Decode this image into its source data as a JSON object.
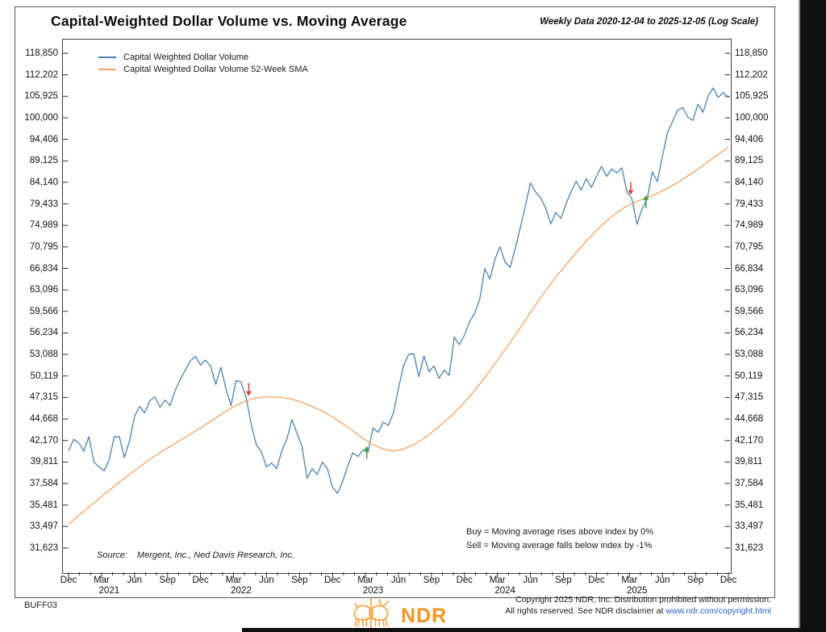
{
  "page": {
    "chart_code": "BUFF03",
    "copyright_line1": "Copyright 2025 NDR, Inc. Distribution prohibited without permission.",
    "copyright_line2_prefix": "All rights reserved. See NDR disclaimer at ",
    "copyright_link": "www.ndr.com/copyright.html",
    "logo_text": "NDR"
  },
  "chart_data": {
    "type": "line",
    "title": "Capital-Weighted Dollar Volume vs. Moving Average",
    "subtitle": "Weekly Data 2020-12-04 to 2025-12-05 (Log Scale)",
    "scale": "log",
    "x_unit": "weeks since 2020-12-04",
    "x_range": [
      0,
      260
    ],
    "y_axis": {
      "top_value": 118850,
      "bottom_value": 31623,
      "tick_labels": [
        "118,850",
        "112,202",
        "105,925",
        "100,000",
        "94,406",
        "89,125",
        "84,140",
        "79,433",
        "74,989",
        "70,795",
        "66,834",
        "63,096",
        "59,566",
        "56,234",
        "53,088",
        "50,119",
        "47,315",
        "44,668",
        "42,170",
        "39,811",
        "37,584",
        "35,481",
        "33,497",
        "31,623"
      ]
    },
    "x_axis": {
      "quarter_labels": [
        {
          "label": "Dec",
          "week": 0
        },
        {
          "label": "Mar",
          "week": 13
        },
        {
          "label": "Jun",
          "week": 26
        },
        {
          "label": "Sep",
          "week": 39
        },
        {
          "label": "Dec",
          "week": 52
        },
        {
          "label": "Mar",
          "week": 65
        },
        {
          "label": "Jun",
          "week": 78
        },
        {
          "label": "Sep",
          "week": 91
        },
        {
          "label": "Dec",
          "week": 104
        },
        {
          "label": "Mar",
          "week": 117
        },
        {
          "label": "Jun",
          "week": 130
        },
        {
          "label": "Sep",
          "week": 143
        },
        {
          "label": "Dec",
          "week": 156
        },
        {
          "label": "Mar",
          "week": 169
        },
        {
          "label": "Jun",
          "week": 182
        },
        {
          "label": "Sep",
          "week": 195
        },
        {
          "label": "Dec",
          "week": 208
        },
        {
          "label": "Mar",
          "week": 221
        },
        {
          "label": "Jun",
          "week": 234
        },
        {
          "label": "Sep",
          "week": 247
        },
        {
          "label": "Dec",
          "week": 260
        }
      ],
      "year_labels": [
        {
          "label": "2021",
          "week": 16
        },
        {
          "label": "2022",
          "week": 68
        },
        {
          "label": "2023",
          "week": 120
        },
        {
          "label": "2024",
          "week": 172
        },
        {
          "label": "2025",
          "week": 224
        }
      ]
    },
    "series": [
      {
        "name": "Capital Weighted Dollar Volume",
        "color": "#4884B0",
        "points": [
          [
            0,
            41000
          ],
          [
            2,
            42300
          ],
          [
            4,
            41900
          ],
          [
            6,
            41000
          ],
          [
            8,
            42600
          ],
          [
            10,
            39800
          ],
          [
            12,
            39300
          ],
          [
            14,
            38900
          ],
          [
            16,
            40000
          ],
          [
            18,
            42600
          ],
          [
            20,
            42600
          ],
          [
            22,
            40300
          ],
          [
            24,
            42100
          ],
          [
            26,
            45000
          ],
          [
            28,
            46200
          ],
          [
            30,
            45400
          ],
          [
            32,
            46900
          ],
          [
            34,
            47400
          ],
          [
            36,
            46100
          ],
          [
            38,
            47000
          ],
          [
            40,
            46300
          ],
          [
            42,
            48200
          ],
          [
            44,
            49600
          ],
          [
            46,
            50900
          ],
          [
            48,
            52200
          ],
          [
            50,
            52800
          ],
          [
            52,
            51600
          ],
          [
            54,
            52300
          ],
          [
            56,
            51400
          ],
          [
            58,
            49000
          ],
          [
            60,
            51300
          ],
          [
            62,
            48400
          ],
          [
            64,
            46300
          ],
          [
            66,
            49500
          ],
          [
            68,
            49300
          ],
          [
            70,
            47300
          ],
          [
            72,
            44000
          ],
          [
            74,
            41700
          ],
          [
            76,
            40900
          ],
          [
            78,
            39300
          ],
          [
            80,
            39700
          ],
          [
            82,
            39100
          ],
          [
            84,
            41000
          ],
          [
            86,
            42300
          ],
          [
            88,
            44600
          ],
          [
            90,
            43000
          ],
          [
            92,
            41500
          ],
          [
            94,
            38100
          ],
          [
            96,
            39100
          ],
          [
            98,
            38500
          ],
          [
            100,
            39800
          ],
          [
            102,
            39100
          ],
          [
            104,
            37200
          ],
          [
            106,
            36600
          ],
          [
            108,
            37800
          ],
          [
            110,
            39400
          ],
          [
            112,
            40800
          ],
          [
            114,
            40400
          ],
          [
            116,
            41100
          ],
          [
            118,
            40900
          ],
          [
            120,
            43600
          ],
          [
            122,
            43100
          ],
          [
            124,
            44300
          ],
          [
            126,
            43900
          ],
          [
            128,
            45400
          ],
          [
            130,
            48500
          ],
          [
            132,
            51500
          ],
          [
            134,
            53100
          ],
          [
            136,
            53200
          ],
          [
            138,
            50000
          ],
          [
            140,
            52900
          ],
          [
            142,
            50700
          ],
          [
            144,
            51500
          ],
          [
            146,
            49800
          ],
          [
            148,
            50900
          ],
          [
            150,
            50200
          ],
          [
            152,
            55600
          ],
          [
            154,
            54500
          ],
          [
            156,
            55900
          ],
          [
            158,
            57900
          ],
          [
            160,
            59300
          ],
          [
            162,
            61500
          ],
          [
            164,
            66800
          ],
          [
            166,
            65000
          ],
          [
            168,
            68500
          ],
          [
            170,
            70800
          ],
          [
            172,
            68000
          ],
          [
            174,
            67000
          ],
          [
            176,
            70500
          ],
          [
            178,
            74500
          ],
          [
            180,
            79000
          ],
          [
            182,
            84000
          ],
          [
            184,
            82000
          ],
          [
            186,
            80700
          ],
          [
            188,
            78500
          ],
          [
            190,
            75300
          ],
          [
            192,
            77600
          ],
          [
            194,
            76400
          ],
          [
            196,
            79400
          ],
          [
            198,
            82000
          ],
          [
            200,
            84400
          ],
          [
            202,
            82400
          ],
          [
            204,
            85000
          ],
          [
            206,
            83000
          ],
          [
            208,
            85500
          ],
          [
            210,
            87800
          ],
          [
            212,
            85500
          ],
          [
            214,
            87200
          ],
          [
            216,
            86300
          ],
          [
            218,
            87500
          ],
          [
            220,
            82000
          ],
          [
            222,
            80500
          ],
          [
            224,
            75200
          ],
          [
            226,
            78400
          ],
          [
            228,
            80500
          ],
          [
            230,
            86500
          ],
          [
            232,
            84300
          ],
          [
            234,
            90200
          ],
          [
            236,
            96200
          ],
          [
            238,
            99000
          ],
          [
            240,
            102100
          ],
          [
            242,
            102800
          ],
          [
            244,
            100200
          ],
          [
            246,
            99300
          ],
          [
            248,
            103700
          ],
          [
            250,
            101500
          ],
          [
            252,
            106000
          ],
          [
            254,
            108300
          ],
          [
            256,
            105600
          ],
          [
            258,
            107000
          ],
          [
            260,
            105500
          ]
        ]
      },
      {
        "name": "Capital Weighted Dollar Volume 52-Week SMA",
        "color": "#F7A15C",
        "points": [
          [
            0,
            33700
          ],
          [
            4,
            34500
          ],
          [
            8,
            35300
          ],
          [
            12,
            36100
          ],
          [
            16,
            36900
          ],
          [
            20,
            37700
          ],
          [
            24,
            38500
          ],
          [
            28,
            39300
          ],
          [
            32,
            40100
          ],
          [
            36,
            40800
          ],
          [
            40,
            41500
          ],
          [
            44,
            42200
          ],
          [
            48,
            42900
          ],
          [
            52,
            43600
          ],
          [
            56,
            44400
          ],
          [
            60,
            45200
          ],
          [
            64,
            46000
          ],
          [
            68,
            46600
          ],
          [
            72,
            47100
          ],
          [
            76,
            47350
          ],
          [
            80,
            47400
          ],
          [
            84,
            47300
          ],
          [
            88,
            47100
          ],
          [
            92,
            46700
          ],
          [
            96,
            46200
          ],
          [
            100,
            45600
          ],
          [
            104,
            44900
          ],
          [
            108,
            44100
          ],
          [
            112,
            43300
          ],
          [
            116,
            42400
          ],
          [
            120,
            41700
          ],
          [
            124,
            41200
          ],
          [
            128,
            41000
          ],
          [
            132,
            41200
          ],
          [
            136,
            41700
          ],
          [
            140,
            42400
          ],
          [
            144,
            43300
          ],
          [
            148,
            44300
          ],
          [
            152,
            45400
          ],
          [
            156,
            46700
          ],
          [
            160,
            48200
          ],
          [
            164,
            49900
          ],
          [
            168,
            51800
          ],
          [
            172,
            53800
          ],
          [
            176,
            55900
          ],
          [
            180,
            58200
          ],
          [
            184,
            60600
          ],
          [
            188,
            63000
          ],
          [
            192,
            65300
          ],
          [
            196,
            67500
          ],
          [
            200,
            69700
          ],
          [
            204,
            71900
          ],
          [
            208,
            74000
          ],
          [
            212,
            75900
          ],
          [
            216,
            77600
          ],
          [
            220,
            79000
          ],
          [
            224,
            80000
          ],
          [
            228,
            80800
          ],
          [
            232,
            81700
          ],
          [
            236,
            82800
          ],
          [
            240,
            84100
          ],
          [
            244,
            85600
          ],
          [
            248,
            87200
          ],
          [
            252,
            88900
          ],
          [
            256,
            90700
          ],
          [
            260,
            92500
          ]
        ]
      }
    ],
    "signals": [
      {
        "action": "Sell",
        "week": 71,
        "value": 47300
      },
      {
        "action": "Buy",
        "week": 117.5,
        "value": 41200
      },
      {
        "action": "Sell",
        "week": 221.5,
        "value": 81000
      },
      {
        "action": "Buy",
        "week": 227.5,
        "value": 80600
      }
    ],
    "signal_colors": {
      "buy": "#3AA648",
      "sell": "#D9453C"
    },
    "annotations": {
      "source_label": "Source:",
      "source_text": "Mergent, Inc., Ned Davis Research, Inc.",
      "buy_rule": "Buy = Moving average rises above index by 0%",
      "sell_rule": "Sell = Moving average falls below index by -1%"
    },
    "legend_position": "top-left",
    "grid": false
  }
}
